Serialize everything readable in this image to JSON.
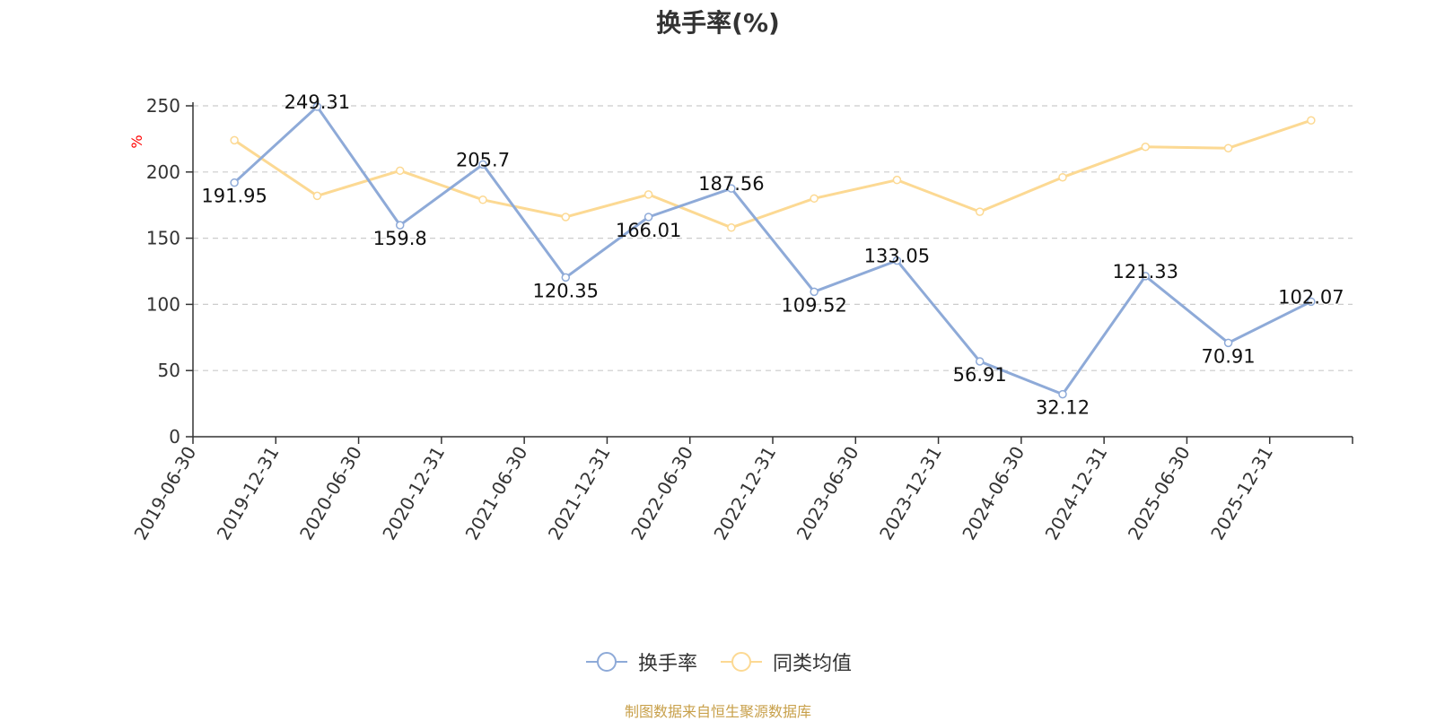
{
  "chart_data": {
    "type": "line",
    "title": "换手率(%)",
    "ylabel": "%",
    "xlabel": "",
    "ylim": [
      0,
      250
    ],
    "yticks": [
      0,
      50,
      100,
      150,
      200,
      250
    ],
    "grid": true,
    "legend_position": "bottom",
    "categories": [
      "2019-06-30",
      "2019-12-31",
      "2020-06-30",
      "2020-12-31",
      "2021-06-30",
      "2021-12-31",
      "2022-06-30",
      "2022-12-31",
      "2023-06-30",
      "2023-12-31",
      "2024-06-30",
      "2024-12-31",
      "2025-06-30",
      "2025-12-31"
    ],
    "series": [
      {
        "name": "换手率",
        "color": "#8eaad8",
        "values": [
          191.95,
          249.31,
          159.8,
          205.7,
          120.35,
          166.01,
          187.56,
          109.52,
          133.05,
          56.91,
          32.12,
          121.33,
          70.91,
          102.07
        ],
        "labels": [
          "191.95",
          "249.31",
          "159.8",
          "205.7",
          "120.35",
          "166.01",
          "187.56",
          "109.52",
          "133.05",
          "56.91",
          "32.12",
          "121.33",
          "70.91",
          "102.07"
        ]
      },
      {
        "name": "同类均值",
        "color": "#fcd993",
        "values": [
          224,
          182,
          201,
          179,
          166,
          183,
          158,
          180,
          194,
          170,
          196,
          219,
          218,
          239
        ]
      }
    ]
  },
  "colors": {
    "axis": "#333333",
    "grid": "#cccccc",
    "unit_label": "#ff0000",
    "source_note": "#c8a04a"
  },
  "source_note": "制图数据来自恒生聚源数据库"
}
